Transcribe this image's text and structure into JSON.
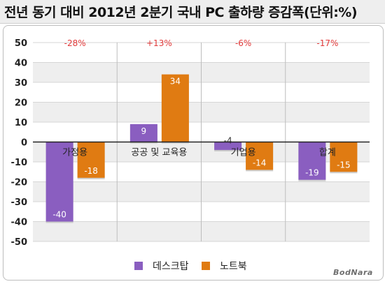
{
  "title": "전년 동기 대비 2012년 2분기 국내 PC 출하량 증감폭(단위:%)",
  "watermark": "BodNara",
  "legend": [
    {
      "label": "데스크탑",
      "color": "#8a5ec0"
    },
    {
      "label": "노트북",
      "color": "#e07b12"
    }
  ],
  "colors": {
    "top_labels": "#e23a3a",
    "band": "#eeeeee",
    "axis": "#222222"
  },
  "chart_data": {
    "type": "bar",
    "categories": [
      "가정용",
      "공공 및 교육용",
      "기업용",
      "합계"
    ],
    "series": [
      {
        "name": "데스크탑",
        "values": [
          -40,
          9,
          -4,
          -19
        ],
        "labels": [
          "-40",
          "9",
          "-4",
          "-19"
        ]
      },
      {
        "name": "노트북",
        "values": [
          -18,
          34,
          -14,
          -15
        ],
        "labels": [
          "-18",
          "34",
          "-14",
          "-15"
        ]
      }
    ],
    "top_labels": [
      "-28%",
      "+13%",
      "-6%",
      "-17%"
    ],
    "ylim": [
      -50,
      50
    ],
    "y_ticks": [
      "50",
      "40",
      "30",
      "20",
      "10",
      "0",
      "-10",
      "-20",
      "-30",
      "-40",
      "-50"
    ],
    "grid": "alternating bands",
    "legend_position": "bottom"
  }
}
